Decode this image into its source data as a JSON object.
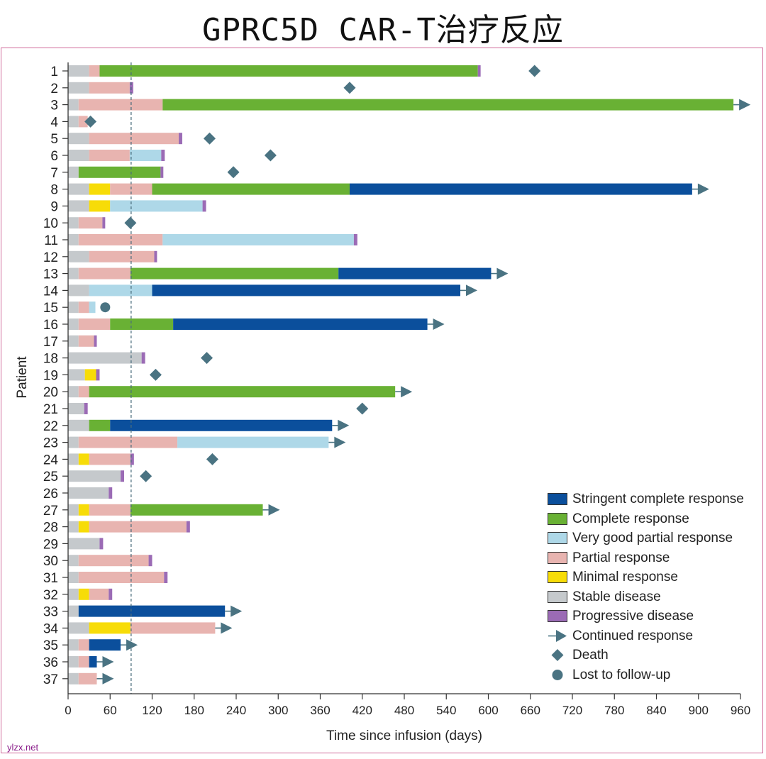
{
  "title": "GPRC5D CAR-T治疗反应",
  "watermark": "ylzx.net",
  "chart_data": {
    "type": "swimmer",
    "xlabel": "Time since infusion (days)",
    "ylabel": "Patient",
    "xlim": [
      0,
      960
    ],
    "xticks": [
      0,
      60,
      120,
      180,
      240,
      300,
      360,
      420,
      480,
      540,
      600,
      660,
      720,
      780,
      840,
      900,
      960
    ],
    "reference_line_day": 90,
    "colors": {
      "SCR": "#0b4f9c",
      "CR": "#69b134",
      "VGPR": "#aed8e8",
      "PR": "#e8b4b0",
      "MR": "#f7dc08",
      "SD": "#c5c9cc",
      "PD": "#9b6bb5",
      "marker": "#4a7382"
    },
    "legend": [
      {
        "key": "SCR",
        "label": "Stringent complete response"
      },
      {
        "key": "CR",
        "label": "Complete response"
      },
      {
        "key": "VGPR",
        "label": "Very good partial response"
      },
      {
        "key": "PR",
        "label": "Partial response"
      },
      {
        "key": "MR",
        "label": "Minimal response"
      },
      {
        "key": "SD",
        "label": "Stable disease"
      },
      {
        "key": "PD",
        "label": "Progressive disease"
      },
      {
        "key": "arrow",
        "label": "Continued response"
      },
      {
        "key": "death",
        "label": "Death"
      },
      {
        "key": "lost",
        "label": "Lost to follow-up"
      }
    ],
    "patients": [
      {
        "id": "1",
        "segments": [
          [
            "SD",
            0,
            30
          ],
          [
            "PR",
            30,
            45
          ],
          [
            "CR",
            45,
            585
          ],
          [
            "PD",
            585,
            589
          ]
        ],
        "death": 666
      },
      {
        "id": "2",
        "segments": [
          [
            "SD",
            0,
            30
          ],
          [
            "PR",
            30,
            88
          ],
          [
            "PD",
            88,
            93
          ]
        ],
        "death": 402
      },
      {
        "id": "3",
        "segments": [
          [
            "SD",
            0,
            15
          ],
          [
            "PR",
            15,
            135
          ],
          [
            "CR",
            135,
            950
          ]
        ],
        "arrow": true
      },
      {
        "id": "4",
        "segments": [
          [
            "SD",
            0,
            15
          ],
          [
            "PR",
            15,
            28
          ]
        ],
        "death": 32
      },
      {
        "id": "5",
        "segments": [
          [
            "SD",
            0,
            30
          ],
          [
            "PR",
            30,
            158
          ],
          [
            "PD",
            158,
            163
          ]
        ],
        "death": 202
      },
      {
        "id": "6",
        "segments": [
          [
            "SD",
            0,
            30
          ],
          [
            "PR",
            30,
            88
          ],
          [
            "VGPR",
            88,
            133
          ],
          [
            "PD",
            133,
            138
          ]
        ],
        "death": 289
      },
      {
        "id": "7",
        "segments": [
          [
            "SD",
            0,
            15
          ],
          [
            "CR",
            15,
            132
          ],
          [
            "PD",
            132,
            136
          ]
        ],
        "death": 236
      },
      {
        "id": "8",
        "segments": [
          [
            "SD",
            0,
            30
          ],
          [
            "MR",
            30,
            60
          ],
          [
            "PR",
            60,
            120
          ],
          [
            "CR",
            120,
            402
          ],
          [
            "SCR",
            402,
            891
          ]
        ],
        "arrow": true
      },
      {
        "id": "9",
        "segments": [
          [
            "SD",
            0,
            30
          ],
          [
            "MR",
            30,
            60
          ],
          [
            "VGPR",
            60,
            192
          ],
          [
            "PD",
            192,
            197
          ]
        ]
      },
      {
        "id": "10",
        "segments": [
          [
            "SD",
            0,
            15
          ],
          [
            "PR",
            15,
            49
          ],
          [
            "PD",
            49,
            53
          ]
        ],
        "death": 89
      },
      {
        "id": "11",
        "segments": [
          [
            "SD",
            0,
            15
          ],
          [
            "PR",
            15,
            135
          ],
          [
            "VGPR",
            135,
            408
          ],
          [
            "PD",
            408,
            413
          ]
        ]
      },
      {
        "id": "12",
        "segments": [
          [
            "SD",
            0,
            30
          ],
          [
            "PR",
            30,
            123
          ],
          [
            "PD",
            123,
            127
          ]
        ]
      },
      {
        "id": "13",
        "segments": [
          [
            "SD",
            0,
            15
          ],
          [
            "PR",
            15,
            89
          ],
          [
            "CR",
            89,
            386
          ],
          [
            "SCR",
            386,
            604
          ]
        ],
        "arrow": true
      },
      {
        "id": "14",
        "segments": [
          [
            "SD",
            0,
            30
          ],
          [
            "VGPR",
            30,
            120
          ],
          [
            "SCR",
            120,
            560
          ]
        ],
        "arrow": true
      },
      {
        "id": "15",
        "segments": [
          [
            "SD",
            0,
            15
          ],
          [
            "PR",
            15,
            30
          ],
          [
            "VGPR",
            30,
            39
          ]
        ],
        "lost": 53
      },
      {
        "id": "16",
        "segments": [
          [
            "SD",
            0,
            15
          ],
          [
            "PR",
            15,
            60
          ],
          [
            "CR",
            60,
            150
          ],
          [
            "SCR",
            150,
            513
          ]
        ],
        "arrow": true
      },
      {
        "id": "17",
        "segments": [
          [
            "SD",
            0,
            15
          ],
          [
            "PR",
            15,
            37
          ],
          [
            "PD",
            37,
            41
          ]
        ]
      },
      {
        "id": "18",
        "segments": [
          [
            "SD",
            0,
            105
          ],
          [
            "PD",
            105,
            110
          ]
        ],
        "death": 198
      },
      {
        "id": "19",
        "segments": [
          [
            "SD",
            0,
            24
          ],
          [
            "MR",
            24,
            40
          ],
          [
            "PD",
            40,
            45
          ]
        ],
        "death": 125
      },
      {
        "id": "20",
        "segments": [
          [
            "SD",
            0,
            15
          ],
          [
            "PR",
            15,
            30
          ],
          [
            "CR",
            30,
            467
          ]
        ],
        "arrow": true
      },
      {
        "id": "21",
        "segments": [
          [
            "SD",
            0,
            23
          ],
          [
            "PD",
            23,
            28
          ]
        ],
        "death": 420
      },
      {
        "id": "22",
        "segments": [
          [
            "SD",
            0,
            30
          ],
          [
            "CR",
            30,
            60
          ],
          [
            "SCR",
            60,
            377
          ]
        ],
        "arrow": true
      },
      {
        "id": "23",
        "segments": [
          [
            "SD",
            0,
            15
          ],
          [
            "PR",
            15,
            156
          ],
          [
            "VGPR",
            156,
            372
          ]
        ],
        "arrow": true
      },
      {
        "id": "24",
        "segments": [
          [
            "SD",
            0,
            15
          ],
          [
            "MR",
            15,
            30
          ],
          [
            "PR",
            30,
            89
          ],
          [
            "PD",
            89,
            94
          ]
        ],
        "death": 206
      },
      {
        "id": "25",
        "segments": [
          [
            "SD",
            0,
            75
          ],
          [
            "PD",
            75,
            80
          ]
        ],
        "death": 111
      },
      {
        "id": "26",
        "segments": [
          [
            "SD",
            0,
            58
          ],
          [
            "PD",
            58,
            63
          ]
        ]
      },
      {
        "id": "27",
        "segments": [
          [
            "SD",
            0,
            15
          ],
          [
            "MR",
            15,
            30
          ],
          [
            "PR",
            30,
            89
          ],
          [
            "CR",
            89,
            278
          ]
        ],
        "arrow": true
      },
      {
        "id": "28",
        "segments": [
          [
            "SD",
            0,
            15
          ],
          [
            "MR",
            15,
            30
          ],
          [
            "PR",
            30,
            169
          ],
          [
            "PD",
            169,
            174
          ]
        ]
      },
      {
        "id": "29",
        "segments": [
          [
            "SD",
            0,
            45
          ],
          [
            "PD",
            45,
            50
          ]
        ]
      },
      {
        "id": "30",
        "segments": [
          [
            "SD",
            0,
            15
          ],
          [
            "PR",
            15,
            115
          ],
          [
            "PD",
            115,
            120
          ]
        ]
      },
      {
        "id": "31",
        "segments": [
          [
            "SD",
            0,
            15
          ],
          [
            "PR",
            15,
            137
          ],
          [
            "PD",
            137,
            142
          ]
        ]
      },
      {
        "id": "32",
        "segments": [
          [
            "SD",
            0,
            15
          ],
          [
            "MR",
            15,
            30
          ],
          [
            "PR",
            30,
            58
          ],
          [
            "PD",
            58,
            63
          ]
        ]
      },
      {
        "id": "33",
        "segments": [
          [
            "SD",
            0,
            15
          ],
          [
            "SCR",
            15,
            224
          ]
        ],
        "arrow": true
      },
      {
        "id": "34",
        "segments": [
          [
            "SD",
            0,
            30
          ],
          [
            "MR",
            30,
            89
          ],
          [
            "PR",
            89,
            210
          ]
        ],
        "arrow": true
      },
      {
        "id": "35",
        "segments": [
          [
            "SD",
            0,
            15
          ],
          [
            "PR",
            15,
            30
          ],
          [
            "SCR",
            30,
            75
          ]
        ],
        "arrow": true
      },
      {
        "id": "36",
        "segments": [
          [
            "SD",
            0,
            15
          ],
          [
            "PR",
            15,
            30
          ],
          [
            "SCR",
            30,
            41
          ]
        ],
        "arrow": true
      },
      {
        "id": "37",
        "segments": [
          [
            "SD",
            0,
            15
          ],
          [
            "PR",
            15,
            41
          ]
        ],
        "arrow": true
      }
    ]
  }
}
